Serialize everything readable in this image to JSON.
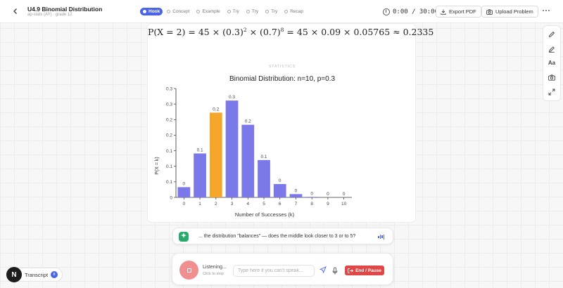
{
  "header": {
    "back_icon": "chevron-left-icon",
    "title": "U4.9 Binomial Distribution",
    "subtitle": "ap-stats (AY) · grade 12",
    "phases": [
      {
        "label": "Hook",
        "active": true
      },
      {
        "label": "Concept",
        "active": false
      },
      {
        "label": "Example",
        "active": false
      },
      {
        "label": "Try",
        "active": false
      },
      {
        "label": "Try",
        "active": false
      },
      {
        "label": "Try",
        "active": false
      },
      {
        "label": "Recap",
        "active": false
      }
    ],
    "timer": "0:00 / 30:00",
    "export_label": "Export PDF",
    "upload_label": "Upload Problem",
    "more_icon": "more-horizontal-icon"
  },
  "tools": [
    "pencil-icon",
    "pen-icon",
    "text-icon",
    "camera-icon",
    "expand-icon"
  ],
  "tools_text_label": "Aa",
  "formula": {
    "lhs": "P(X = 2) = 45 × (0.3)",
    "exp1": "2",
    "mid": " × (0.7)",
    "exp2": "8",
    "rhs": " = 45 × 0.09 × 0.05765 ≈ 0.2335"
  },
  "section_tag": "STATISTICS",
  "chart_data": {
    "type": "bar",
    "title": "Binomial Distribution: n=10, p=0.3",
    "xlabel": "Number of Successes (k)",
    "ylabel": "P(X = k)",
    "categories": [
      "0",
      "1",
      "2",
      "3",
      "4",
      "5",
      "6",
      "7",
      "8",
      "9",
      "10"
    ],
    "values": [
      0.0282,
      0.1211,
      0.2335,
      0.2668,
      0.2001,
      0.1029,
      0.0368,
      0.009,
      0.0014,
      0.0001,
      0.0
    ],
    "data_labels": [
      "0",
      "0.1",
      "0.2",
      "0.3",
      "0.2",
      "0.1",
      "0",
      "0",
      "0",
      "0",
      "0"
    ],
    "highlight_index": 2,
    "colors": {
      "default": "#7b78ea",
      "highlight": "#f3a62a"
    },
    "yticks": [
      "0",
      "0.1",
      "0.1",
      "0.1",
      "0.2",
      "0.2",
      "0.3",
      "0.3"
    ],
    "ylim": [
      0,
      0.3
    ],
    "grid": false,
    "legend": "none"
  },
  "voice": {
    "bubble_text": "... the distribution \"balances\" — does the middle look closer to 3 or to 5?",
    "status": "Listening...",
    "status_sub": "Click to stop",
    "input_placeholder": "Type here if you can't speak...",
    "end_label": "End / Pause"
  },
  "transcript": {
    "logo": "N",
    "label": "Transcript",
    "count": "8"
  },
  "colors": {
    "accent": "#4a63e7",
    "danger": "#e04848",
    "stop": "#f08f8f",
    "success": "#2aa96b"
  }
}
